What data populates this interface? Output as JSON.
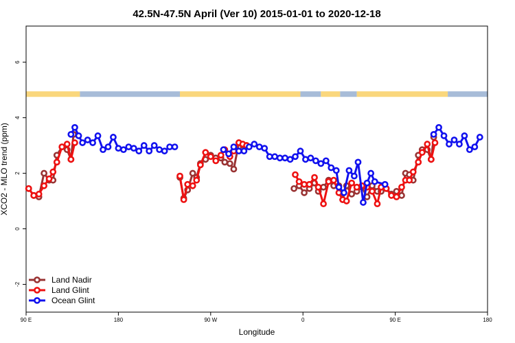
{
  "chart_data": {
    "type": "line",
    "title": "42.5N-47.5N April (Ver 10)   2015-01-01 to 2020-12-18",
    "xlabel": "Longitude",
    "ylabel": "XCO2 - MLO trend (ppm)",
    "xlim": [
      90,
      450
    ],
    "ylim": [
      -3,
      7.3
    ],
    "x_ticks": [
      {
        "value": 90,
        "label": "90 E"
      },
      {
        "value": 162,
        "label": "180"
      },
      {
        "value": 234,
        "label": "90 W"
      },
      {
        "value": 306,
        "label": "0"
      },
      {
        "value": 378,
        "label": "90 E"
      },
      {
        "value": 450,
        "label": "180"
      }
    ],
    "y_ticks": [
      {
        "value": -2,
        "label": "-2"
      },
      {
        "value": 0,
        "label": "0"
      },
      {
        "value": 2,
        "label": "2"
      },
      {
        "value": 4,
        "label": "4"
      },
      {
        "value": 6,
        "label": "6"
      }
    ],
    "land_sea_band": {
      "y_range": [
        4.75,
        4.95
      ],
      "land_color": "#fad77d",
      "ocean_color": "#a7bcd8",
      "segments": [
        {
          "x0": 90,
          "x1": 132,
          "kind": "land"
        },
        {
          "x0": 132,
          "x1": 210,
          "kind": "ocean"
        },
        {
          "x0": 210,
          "x1": 304,
          "kind": "land"
        },
        {
          "x0": 304,
          "x1": 320,
          "kind": "ocean"
        },
        {
          "x0": 320,
          "x1": 335,
          "kind": "land"
        },
        {
          "x0": 335,
          "x1": 348,
          "kind": "ocean"
        },
        {
          "x0": 348,
          "x1": 419,
          "kind": "land"
        },
        {
          "x0": 419,
          "x1": 450,
          "kind": "ocean"
        }
      ]
    },
    "series": [
      {
        "name": "Land Nadir",
        "color": "#993333",
        "segments": [
          [
            [
              92,
              1.45
            ],
            [
              96,
              1.2
            ],
            [
              100,
              1.15
            ],
            [
              104,
              2.0
            ],
            [
              108,
              1.75
            ],
            [
              111,
              1.75
            ],
            [
              114,
              2.65
            ],
            [
              118,
              2.95
            ],
            [
              122,
              2.85
            ],
            [
              125,
              2.5
            ],
            [
              127,
              3.4
            ]
          ],
          [
            [
              210,
              1.85
            ],
            [
              213,
              1.1
            ],
            [
              216,
              1.4
            ],
            [
              220,
              2.0
            ],
            [
              223,
              1.85
            ],
            [
              226,
              2.35
            ],
            [
              230,
              2.5
            ],
            [
              234,
              2.65
            ],
            [
              238,
              2.55
            ],
            [
              242,
              2.55
            ],
            [
              245,
              2.4
            ],
            [
              249,
              2.35
            ],
            [
              252,
              2.15
            ],
            [
              256,
              3.1
            ],
            [
              259,
              2.85
            ],
            [
              262,
              3.0
            ]
          ],
          [
            [
              299,
              1.45
            ],
            [
              303,
              1.55
            ],
            [
              307,
              1.3
            ],
            [
              311,
              1.45
            ],
            [
              315,
              1.65
            ],
            [
              318,
              1.35
            ],
            [
              322,
              1.5
            ],
            [
              326,
              1.75
            ],
            [
              330,
              1.55
            ],
            [
              334,
              1.55
            ],
            [
              337,
              1.05
            ],
            [
              340,
              1.55
            ],
            [
              344,
              1.25
            ],
            [
              348,
              1.35
            ],
            [
              352,
              1.5
            ],
            [
              356,
              1.15
            ],
            [
              360,
              1.55
            ],
            [
              364,
              1.35
            ],
            [
              367,
              1.35
            ],
            [
              371,
              1.45
            ],
            [
              375,
              1.25
            ],
            [
              379,
              1.35
            ],
            [
              383,
              1.2
            ],
            [
              386,
              2.0
            ],
            [
              389,
              1.95
            ],
            [
              392,
              1.75
            ],
            [
              396,
              2.65
            ],
            [
              399,
              2.85
            ],
            [
              403,
              2.85
            ],
            [
              406,
              2.5
            ],
            [
              408,
              3.3
            ]
          ]
        ]
      },
      {
        "name": "Land Glint",
        "color": "#ee1111",
        "segments": [
          [
            [
              92,
              1.45
            ],
            [
              96,
              1.2
            ],
            [
              100,
              1.25
            ],
            [
              104,
              1.55
            ],
            [
              108,
              1.8
            ],
            [
              111,
              2.05
            ],
            [
              114,
              2.4
            ],
            [
              118,
              2.95
            ],
            [
              122,
              3.05
            ],
            [
              125,
              2.5
            ],
            [
              128,
              3.1
            ]
          ],
          [
            [
              210,
              1.9
            ],
            [
              213,
              1.05
            ],
            [
              216,
              1.6
            ],
            [
              220,
              1.55
            ],
            [
              223,
              1.75
            ],
            [
              226,
              2.3
            ],
            [
              230,
              2.75
            ],
            [
              234,
              2.6
            ],
            [
              238,
              2.45
            ],
            [
              242,
              2.65
            ],
            [
              245,
              2.85
            ],
            [
              249,
              2.6
            ],
            [
              252,
              2.8
            ],
            [
              256,
              3.1
            ],
            [
              259,
              3.05
            ],
            [
              262,
              3.0
            ]
          ],
          [
            [
              300,
              1.95
            ],
            [
              303,
              1.7
            ],
            [
              307,
              1.6
            ],
            [
              311,
              1.6
            ],
            [
              315,
              1.85
            ],
            [
              318,
              1.5
            ],
            [
              322,
              0.9
            ],
            [
              326,
              1.7
            ],
            [
              330,
              1.75
            ],
            [
              334,
              1.3
            ],
            [
              337,
              1.05
            ],
            [
              340,
              1.0
            ],
            [
              344,
              1.65
            ],
            [
              348,
              1.5
            ],
            [
              352,
              1.55
            ],
            [
              356,
              1.5
            ],
            [
              360,
              1.35
            ],
            [
              364,
              0.9
            ],
            [
              367,
              1.5
            ],
            [
              371,
              1.45
            ],
            [
              375,
              1.2
            ],
            [
              379,
              1.15
            ],
            [
              383,
              1.5
            ],
            [
              386,
              1.75
            ],
            [
              389,
              1.75
            ],
            [
              392,
              2.05
            ],
            [
              396,
              2.4
            ],
            [
              399,
              2.75
            ],
            [
              403,
              3.05
            ],
            [
              406,
              2.5
            ],
            [
              409,
              3.1
            ]
          ]
        ]
      },
      {
        "name": "Ocean Glint",
        "color": "#1111ee",
        "segments": [
          [
            [
              125,
              3.4
            ],
            [
              128,
              3.65
            ],
            [
              131,
              3.35
            ],
            [
              134,
              3.1
            ],
            [
              138,
              3.2
            ],
            [
              142,
              3.1
            ],
            [
              146,
              3.35
            ],
            [
              150,
              2.85
            ],
            [
              154,
              2.95
            ],
            [
              158,
              3.3
            ],
            [
              162,
              2.9
            ],
            [
              166,
              2.85
            ],
            [
              170,
              2.95
            ],
            [
              174,
              2.9
            ],
            [
              178,
              2.8
            ],
            [
              182,
              3.0
            ],
            [
              186,
              2.8
            ],
            [
              190,
              3.0
            ],
            [
              194,
              2.85
            ],
            [
              198,
              2.8
            ],
            [
              202,
              2.95
            ],
            [
              206,
              2.95
            ]
          ],
          [
            [
              244,
              2.85
            ],
            [
              248,
              2.7
            ],
            [
              252,
              2.95
            ],
            [
              256,
              2.8
            ],
            [
              260,
              2.8
            ],
            [
              264,
              2.95
            ],
            [
              268,
              3.05
            ],
            [
              272,
              2.95
            ],
            [
              276,
              2.9
            ],
            [
              280,
              2.6
            ],
            [
              284,
              2.6
            ],
            [
              288,
              2.55
            ],
            [
              292,
              2.55
            ],
            [
              296,
              2.5
            ],
            [
              300,
              2.6
            ],
            [
              304,
              2.8
            ],
            [
              308,
              2.5
            ],
            [
              312,
              2.55
            ],
            [
              316,
              2.45
            ],
            [
              320,
              2.35
            ],
            [
              324,
              2.45
            ],
            [
              328,
              2.2
            ],
            [
              332,
              2.1
            ],
            [
              334,
              1.5
            ],
            [
              338,
              1.3
            ],
            [
              342,
              2.1
            ],
            [
              346,
              1.9
            ],
            [
              349,
              2.4
            ],
            [
              353,
              0.95
            ],
            [
              356,
              1.65
            ],
            [
              359,
              2.0
            ],
            [
              362,
              1.7
            ],
            [
              370,
              1.6
            ]
          ],
          [
            [
              408,
              3.4
            ],
            [
              412,
              3.65
            ],
            [
              416,
              3.35
            ],
            [
              420,
              3.05
            ],
            [
              424,
              3.2
            ],
            [
              428,
              3.05
            ],
            [
              432,
              3.35
            ],
            [
              436,
              2.85
            ],
            [
              440,
              2.95
            ],
            [
              444,
              3.3
            ]
          ]
        ]
      }
    ],
    "legend": {
      "position": "bottom-left",
      "entries": [
        "Land Nadir",
        "Land Glint",
        "Ocean Glint"
      ]
    },
    "grid": false
  }
}
